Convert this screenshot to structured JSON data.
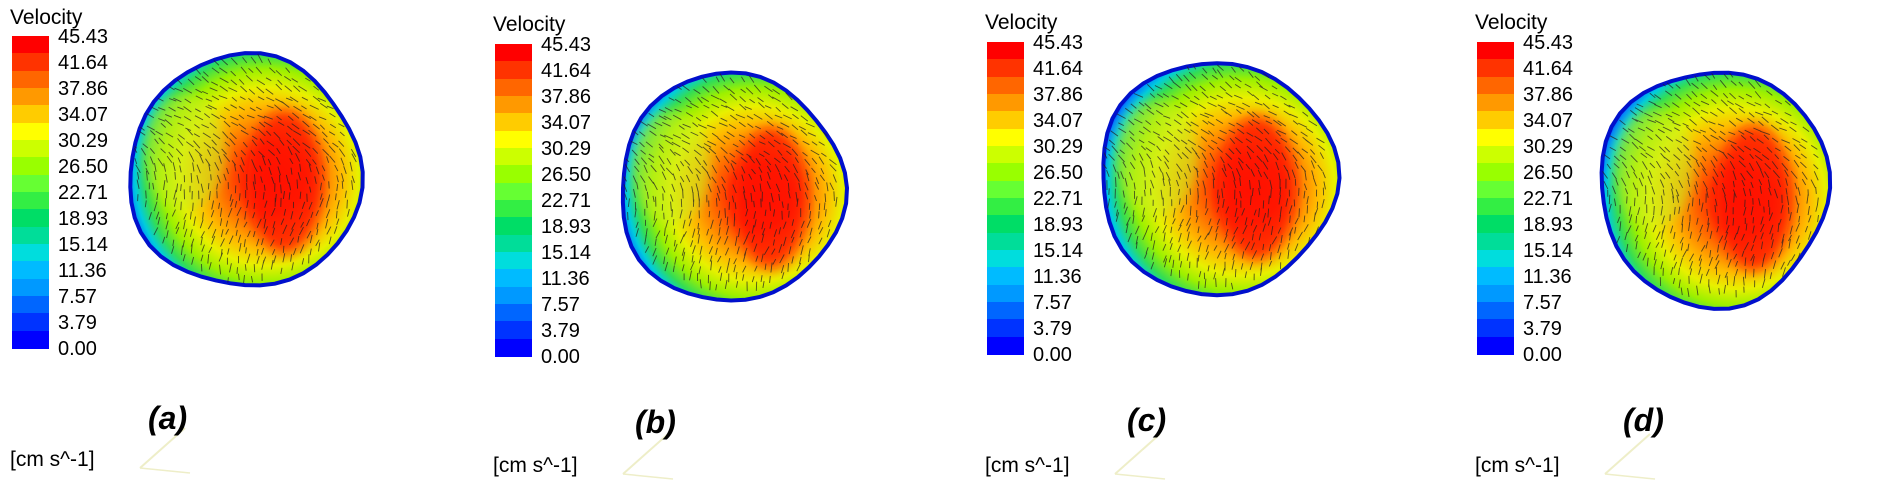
{
  "colorbar": {
    "title": "Velocity",
    "units": "[cm s^-1]",
    "ticks": [
      "45.43",
      "41.64",
      "37.86",
      "34.07",
      "30.29",
      "26.50",
      "22.71",
      "18.93",
      "15.14",
      "11.36",
      "7.57",
      "3.79",
      "0.00"
    ],
    "colors": [
      "#ff0000",
      "#ff3300",
      "#ff6600",
      "#ff9900",
      "#ffcc00",
      "#ffff00",
      "#ccff00",
      "#99ff00",
      "#66ff33",
      "#33ee44",
      "#00dd66",
      "#00dd99",
      "#00dddd",
      "#00bbff",
      "#0099ff",
      "#0066ff",
      "#0033ff",
      "#0000ff"
    ]
  },
  "panels": [
    {
      "label": "(a)"
    },
    {
      "label": "(b)"
    },
    {
      "label": "(c)"
    },
    {
      "label": "(d)"
    }
  ]
}
